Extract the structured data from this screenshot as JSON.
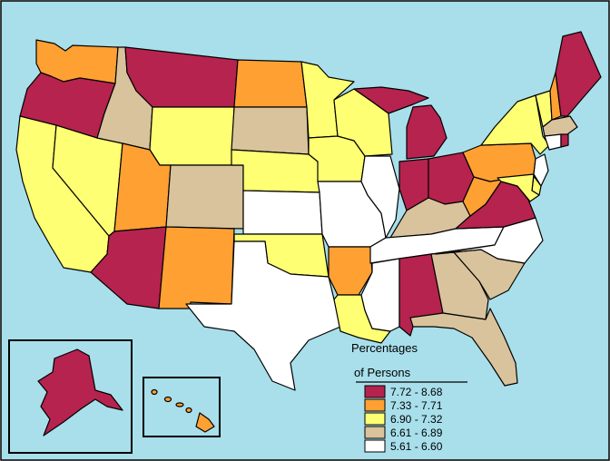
{
  "colors": {
    "ocean": "#a8dfeb",
    "frame": "#000000",
    "inset_bg": "#a8dfeb",
    "c1": "#b5234e",
    "c2": "#ffa033",
    "c3": "#ffff73",
    "c4": "#d9c39c",
    "c5": "#ffffff"
  },
  "legend": {
    "title_line1": "Percentages",
    "title_line2": "of Persons",
    "classes": [
      {
        "label": "7.72 - 8.68",
        "color": "#b5234e"
      },
      {
        "label": "7.33 - 7.71",
        "color": "#ffa033"
      },
      {
        "label": "6.90 - 7.32",
        "color": "#ffff73"
      },
      {
        "label": "6.61 - 6.89",
        "color": "#d9c39c"
      },
      {
        "label": "5.61 - 6.60",
        "color": "#ffffff"
      }
    ]
  },
  "state_classes": {
    "WA": 2,
    "OR": 1,
    "CA": 3,
    "NV": 3,
    "ID": 4,
    "MT": 1,
    "WY": 3,
    "UT": 2,
    "AZ": 1,
    "CO": 4,
    "NM": 2,
    "ND": 2,
    "SD": 4,
    "NE": 3,
    "KS": 5,
    "OK": 3,
    "TX": 5,
    "MN": 3,
    "IA": 3,
    "MO": 5,
    "AR": 2,
    "LA": 3,
    "WI": 3,
    "IL": 5,
    "MI": 1,
    "IN": 1,
    "OH": 1,
    "KY": 4,
    "TN": 5,
    "MS": 5,
    "AL": 1,
    "GA": 4,
    "FL": 4,
    "SC": 4,
    "NC": 5,
    "VA": 1,
    "WV": 2,
    "PA": 2,
    "NY": 3,
    "VT": 3,
    "NH": 2,
    "ME": 1,
    "MA": 4,
    "CT": 5,
    "RI": 1,
    "NJ": 5,
    "DE": 3,
    "MD": 3,
    "AK": 1,
    "HI": 2
  }
}
